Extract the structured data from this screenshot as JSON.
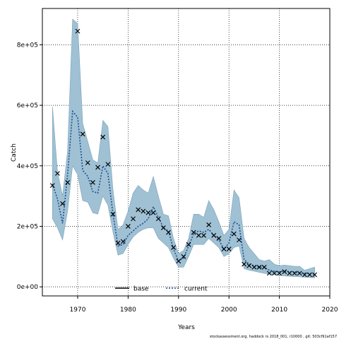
{
  "chart_data": {
    "type": "line",
    "title": "",
    "xlabel": "Years",
    "ylabel": "Catch",
    "xlim": [
      1963,
      2020
    ],
    "ylim": [
      -30000,
      920000
    ],
    "x_ticks": [
      1970,
      1980,
      1990,
      2000,
      2010,
      2020
    ],
    "x_tick_labels": [
      "1970",
      "1980",
      "1990",
      "2000",
      "2010",
      "2020"
    ],
    "y_ticks": [
      0,
      200000,
      400000,
      600000,
      800000
    ],
    "y_tick_labels": [
      "0e+00",
      "2e+05",
      "4e+05",
      "6e+05",
      "8e+05"
    ],
    "grid": true,
    "legend_position": "bottom-center",
    "colors": {
      "band": "#9fc1d3",
      "band_edge": "#7aa3bb",
      "current_line": "#1f4e99",
      "base_line": "#000000",
      "points": "#000000"
    },
    "series": [
      {
        "name": "base",
        "values": []
      },
      {
        "name": "current",
        "x": [
          1965,
          1966,
          1967,
          1968,
          1969,
          1970,
          1971,
          1972,
          1973,
          1974,
          1975,
          1976,
          1977,
          1978,
          1979,
          1980,
          1981,
          1982,
          1983,
          1984,
          1985,
          1986,
          1987,
          1988,
          1989,
          1990,
          1991,
          1992,
          1993,
          1994,
          1995,
          1996,
          1997,
          1998,
          1999,
          2000,
          2001,
          2002,
          2003,
          2004,
          2005,
          2006,
          2007,
          2008,
          2009,
          2010,
          2011,
          2012,
          2013,
          2014,
          2015,
          2016,
          2017
        ],
        "values": [
          340000,
          290000,
          210000,
          370000,
          580000,
          560000,
          385000,
          365000,
          315000,
          310000,
          400000,
          375000,
          240000,
          135000,
          140000,
          170000,
          185000,
          200000,
          210000,
          225000,
          265000,
          230000,
          195000,
          185000,
          125000,
          85000,
          95000,
          135000,
          175000,
          185000,
          180000,
          190000,
          170000,
          155000,
          125000,
          145000,
          215000,
          205000,
          90000,
          75000,
          70000,
          65000,
          65000,
          55000,
          52000,
          50000,
          52000,
          50000,
          48000,
          46000,
          45000,
          44000,
          42000
        ]
      }
    ],
    "band": {
      "x": [
        1965,
        1966,
        1967,
        1968,
        1969,
        1970,
        1971,
        1972,
        1973,
        1974,
        1975,
        1976,
        1977,
        1978,
        1979,
        1980,
        1981,
        1982,
        1983,
        1984,
        1985,
        1986,
        1987,
        1988,
        1989,
        1990,
        1991,
        1992,
        1993,
        1994,
        1995,
        1996,
        1997,
        1998,
        1999,
        2000,
        2001,
        2002,
        2003,
        2004,
        2005,
        2006,
        2007,
        2008,
        2009,
        2010,
        2011,
        2012,
        2013,
        2014,
        2015,
        2016,
        2017
      ],
      "upper": [
        595000,
        380000,
        300000,
        450000,
        885000,
        870000,
        540000,
        480000,
        420000,
        410000,
        550000,
        530000,
        320000,
        190000,
        205000,
        250000,
        310000,
        335000,
        320000,
        310000,
        365000,
        300000,
        240000,
        235000,
        160000,
        110000,
        120000,
        160000,
        240000,
        240000,
        230000,
        285000,
        255000,
        215000,
        170000,
        190000,
        320000,
        295000,
        160000,
        130000,
        110000,
        90000,
        85000,
        90000,
        75000,
        70000,
        72000,
        70000,
        68000,
        68000,
        55000,
        60000,
        65000
      ],
      "lower": [
        225000,
        195000,
        155000,
        250000,
        400000,
        370000,
        285000,
        280000,
        245000,
        240000,
        300000,
        270000,
        180000,
        105000,
        110000,
        140000,
        165000,
        180000,
        190000,
        195000,
        195000,
        160000,
        145000,
        130000,
        95000,
        65000,
        65000,
        100000,
        140000,
        140000,
        140000,
        160000,
        145000,
        130000,
        100000,
        110000,
        130000,
        135000,
        60000,
        55000,
        52000,
        48000,
        45000,
        42000,
        40000,
        38000,
        36000,
        35000,
        34000,
        33000,
        32000,
        31000,
        30000
      ]
    },
    "observed": {
      "x": [
        1965,
        1966,
        1967,
        1968,
        1970,
        1971,
        1972,
        1973,
        1974,
        1975,
        1976,
        1977,
        1978,
        1979,
        1980,
        1981,
        1982,
        1983,
        1984,
        1985,
        1986,
        1987,
        1988,
        1989,
        1990,
        1991,
        1992,
        1993,
        1994,
        1995,
        1996,
        1997,
        1998,
        1999,
        2000,
        2001,
        2002,
        2003,
        2004,
        2005,
        2006,
        2007,
        2008,
        2009,
        2010,
        2011,
        2012,
        2013,
        2014,
        2015,
        2016,
        2017
      ],
      "values": [
        335000,
        375000,
        275000,
        345000,
        845000,
        505000,
        410000,
        345000,
        395000,
        495000,
        405000,
        240000,
        145000,
        150000,
        200000,
        225000,
        255000,
        250000,
        245000,
        245000,
        225000,
        195000,
        180000,
        130000,
        85000,
        100000,
        140000,
        180000,
        170000,
        170000,
        205000,
        170000,
        160000,
        125000,
        125000,
        175000,
        155000,
        75000,
        70000,
        65000,
        65000,
        65000,
        45000,
        45000,
        45000,
        50000,
        45000,
        45000,
        45000,
        40000,
        40000,
        40000
      ]
    },
    "legend": [
      "base",
      "current"
    ]
  },
  "footer": {
    "text": "stockassessment.org, haddock  rs  2018_001, r10000 , git: 503cf91af157"
  }
}
